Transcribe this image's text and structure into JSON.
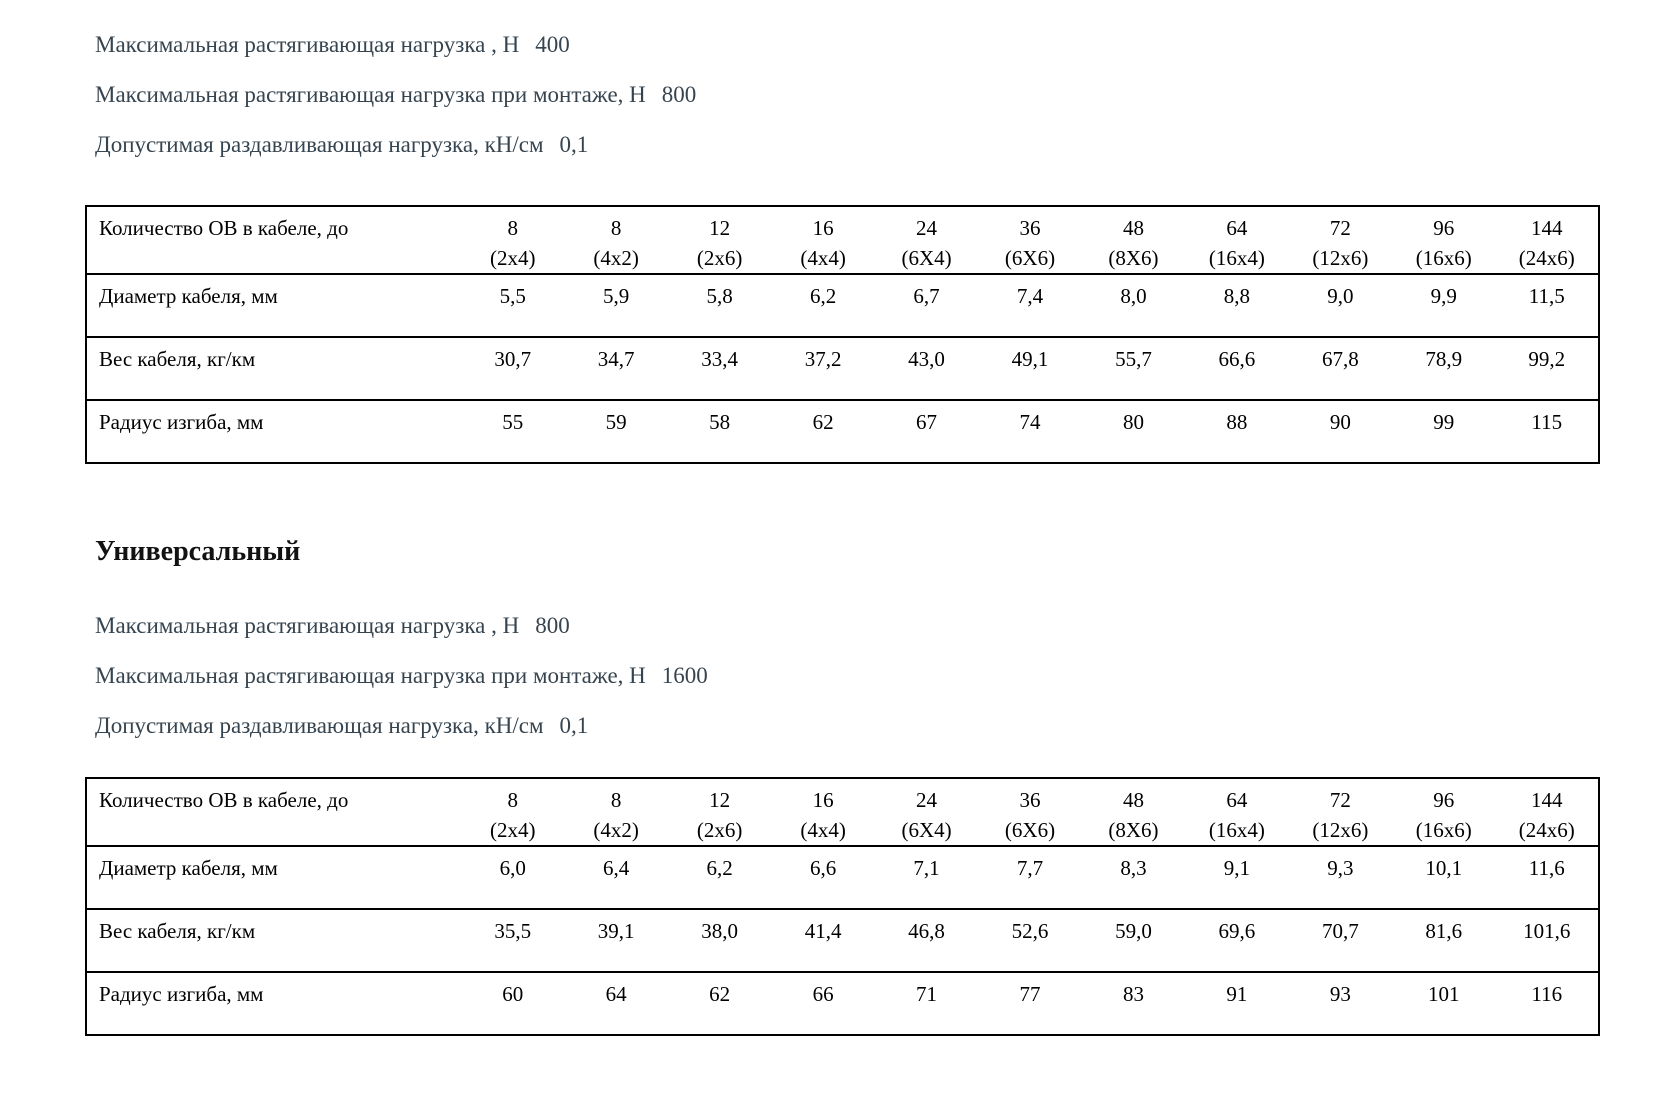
{
  "theme": {
    "background": "#ffffff",
    "spec_text_color": "#36444f",
    "heading_color": "#121212",
    "table_text_color": "#000000",
    "table_border_color": "#000000"
  },
  "section_top": {
    "specs": [
      {
        "label": "Максимальная растягивающая нагрузка , Н",
        "value": "400"
      },
      {
        "label": "Максимальная растягивающая нагрузка при монтаже, Н",
        "value": "800"
      },
      {
        "label": "Допустимая раздавливающая нагрузка, кН/см",
        "value": "0,1"
      }
    ],
    "table": {
      "header_label": "Количество ОВ в кабеле, до",
      "columns": [
        {
          "count": "8",
          "config": "(2x4)"
        },
        {
          "count": "8",
          "config": "(4x2)"
        },
        {
          "count": "12",
          "config": "(2x6)"
        },
        {
          "count": "16",
          "config": "(4x4)"
        },
        {
          "count": "24",
          "config": "(6X4)"
        },
        {
          "count": "36",
          "config": "(6X6)"
        },
        {
          "count": "48",
          "config": "(8X6)"
        },
        {
          "count": "64",
          "config": "(16x4)"
        },
        {
          "count": "72",
          "config": "(12x6)"
        },
        {
          "count": "96",
          "config": "(16x6)"
        },
        {
          "count": "144",
          "config": "(24x6)"
        }
      ],
      "rows": [
        {
          "label": "Диаметр кабеля, мм",
          "values": [
            "5,5",
            "5,9",
            "5,8",
            "6,2",
            "6,7",
            "7,4",
            "8,0",
            "8,8",
            "9,0",
            "9,9",
            "11,5"
          ]
        },
        {
          "label": "Вес кабеля, кг/км",
          "values": [
            "30,7",
            "34,7",
            "33,4",
            "37,2",
            "43,0",
            "49,1",
            "55,7",
            "66,6",
            "67,8",
            "78,9",
            "99,2"
          ]
        },
        {
          "label": "Радиус изгиба, мм",
          "values": [
            "55",
            "59",
            "58",
            "62",
            "67",
            "74",
            "80",
            "88",
            "90",
            "99",
            "115"
          ]
        }
      ]
    }
  },
  "section_universal": {
    "heading": "Универсальный",
    "specs": [
      {
        "label": "Максимальная растягивающая нагрузка , Н",
        "value": "800"
      },
      {
        "label": "Максимальная растягивающая нагрузка при монтаже, Н",
        "value": "1600"
      },
      {
        "label": "Допустимая раздавливающая нагрузка, кН/см",
        "value": "0,1"
      }
    ],
    "table": {
      "header_label": "Количество ОВ в кабеле, до",
      "columns": [
        {
          "count": "8",
          "config": "(2x4)"
        },
        {
          "count": "8",
          "config": "(4x2)"
        },
        {
          "count": "12",
          "config": "(2x6)"
        },
        {
          "count": "16",
          "config": "(4x4)"
        },
        {
          "count": "24",
          "config": "(6X4)"
        },
        {
          "count": "36",
          "config": "(6X6)"
        },
        {
          "count": "48",
          "config": "(8X6)"
        },
        {
          "count": "64",
          "config": "(16x4)"
        },
        {
          "count": "72",
          "config": "(12x6)"
        },
        {
          "count": "96",
          "config": "(16x6)"
        },
        {
          "count": "144",
          "config": "(24x6)"
        }
      ],
      "rows": [
        {
          "label": "Диаметр кабеля, мм",
          "values": [
            "6,0",
            "6,4",
            "6,2",
            "6,6",
            "7,1",
            "7,7",
            "8,3",
            "9,1",
            "9,3",
            "10,1",
            "11,6"
          ]
        },
        {
          "label": "Вес кабеля, кг/км",
          "values": [
            "35,5",
            "39,1",
            "38,0",
            "41,4",
            "46,8",
            "52,6",
            "59,0",
            "69,6",
            "70,7",
            "81,6",
            "101,6"
          ]
        },
        {
          "label": "Радиус изгиба, мм",
          "values": [
            "60",
            "64",
            "62",
            "66",
            "71",
            "77",
            "83",
            "91",
            "93",
            "101",
            "116"
          ]
        }
      ]
    }
  }
}
